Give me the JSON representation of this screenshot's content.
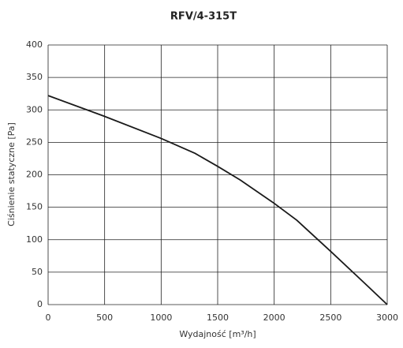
{
  "chart_data": {
    "type": "line",
    "title": "RFV/4-315T",
    "x_label": "Wydajność [m³/h]",
    "y_label": "Ciśnienie statyczne [Pa]",
    "x": [
      0,
      500,
      1000,
      1300,
      1500,
      1700,
      2000,
      2200,
      2500,
      2800,
      3000
    ],
    "series": [
      {
        "name": "RFV/4-315T",
        "color": "#1a1a1a",
        "values": [
          322,
          290,
          256,
          233,
          213,
          192,
          156,
          130,
          82,
          33,
          0
        ]
      }
    ],
    "xlim": [
      0,
      3000
    ],
    "xticks": [
      0,
      500,
      1000,
      1500,
      2000,
      2500,
      3000
    ],
    "ylim": [
      0,
      400
    ],
    "yticks": [
      0,
      50,
      100,
      150,
      200,
      250,
      300,
      350,
      400
    ],
    "grid": true
  }
}
